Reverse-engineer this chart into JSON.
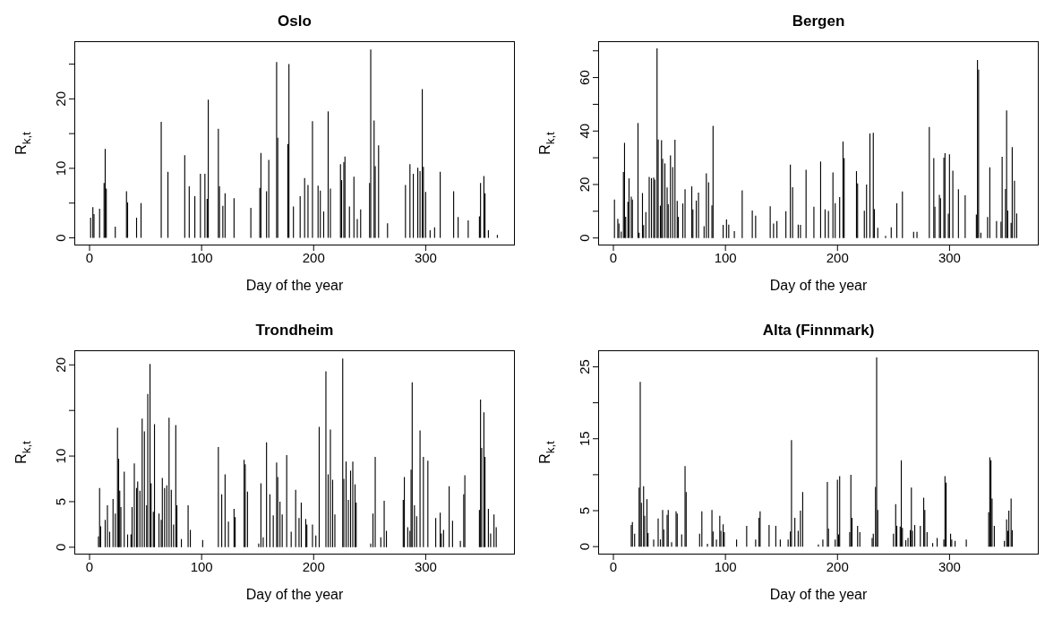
{
  "chart_data": [
    {
      "type": "bar",
      "title": "Oslo",
      "xlabel": "Day of the year",
      "ylabel": "R$_{k,t}$",
      "color": "#000000",
      "xlim": [
        -13.6,
        379.6
      ],
      "ylim": [
        -1.1,
        28.3
      ],
      "xticks": [
        0,
        100,
        200,
        300
      ],
      "yticks": [
        0,
        {
          "value": 5,
          "label": null
        },
        10,
        {
          "value": 15,
          "label": null
        },
        20,
        {
          "value": 25,
          "label": null
        }
      ],
      "x": [
        1,
        3,
        4,
        9,
        13,
        14,
        15,
        23,
        33,
        34,
        42,
        46,
        64,
        70,
        85,
        89,
        94,
        99,
        103,
        105,
        106,
        115,
        116,
        119,
        121,
        129,
        144,
        152,
        153,
        158,
        160,
        167,
        168,
        177,
        178,
        182,
        188,
        192,
        195,
        199,
        204,
        206,
        209,
        213,
        215,
        224,
        225,
        227,
        228,
        232,
        236,
        239,
        242,
        250,
        251,
        254,
        255,
        258,
        266,
        282,
        286,
        289,
        293,
        295,
        297,
        298,
        300,
        304,
        308,
        313,
        325,
        329,
        338,
        348,
        349,
        352,
        353,
        356,
        364
      ],
      "values": [
        2.9,
        4.4,
        3.4,
        4.2,
        7.9,
        12.8,
        7.1,
        1.6,
        6.7,
        5.1,
        2.9,
        5.0,
        16.7,
        9.5,
        11.9,
        7.4,
        6.0,
        9.2,
        9.2,
        5.6,
        19.9,
        15.7,
        7.4,
        4.6,
        6.4,
        5.7,
        4.3,
        7.2,
        12.2,
        6.7,
        11.2,
        25.3,
        14.4,
        13.5,
        25.0,
        4.5,
        6.0,
        8.6,
        7.6,
        16.8,
        7.5,
        6.8,
        3.8,
        18.2,
        7.1,
        10.6,
        8.3,
        10.9,
        11.7,
        4.5,
        8.8,
        2.7,
        4.1,
        7.9,
        27.1,
        16.9,
        10.3,
        13.3,
        2.1,
        7.6,
        10.6,
        9.2,
        10.1,
        9.6,
        21.4,
        10.2,
        6.6,
        1.1,
        1.5,
        9.5,
        6.7,
        3.0,
        2.5,
        3.1,
        7.9,
        8.9,
        6.4,
        1.1,
        0.4
      ]
    },
    {
      "type": "bar",
      "title": "Bergen",
      "xlabel": "Day of the year",
      "ylabel": "R$_{k,t}$",
      "color": "#000000",
      "xlim": [
        -13.6,
        379.6
      ],
      "ylim": [
        -2.8,
        73.6
      ],
      "xticks": [
        0,
        100,
        200,
        300
      ],
      "yticks": [
        0,
        {
          "value": 10,
          "label": null
        },
        20,
        {
          "value": 30,
          "label": null
        },
        40,
        {
          "value": 50,
          "label": null
        },
        60,
        {
          "value": 70,
          "label": null
        }
      ],
      "x": [
        1,
        4,
        5,
        7,
        9,
        10,
        11,
        13,
        14,
        16,
        17,
        22,
        23,
        26,
        27,
        29,
        32,
        34,
        36,
        37,
        39,
        40,
        42,
        43,
        44,
        46,
        48,
        49,
        51,
        53,
        55,
        57,
        58,
        62,
        64,
        70,
        71,
        74,
        76,
        81,
        83,
        85,
        88,
        89,
        98,
        101,
        103,
        108,
        115,
        124,
        127,
        140,
        143,
        146,
        154,
        158,
        160,
        165,
        167,
        172,
        179,
        185,
        189,
        192,
        196,
        198,
        202,
        205,
        206,
        217,
        218,
        224,
        226,
        229,
        232,
        233,
        236,
        243,
        248,
        253,
        258,
        268,
        271,
        282,
        286,
        287,
        291,
        292,
        295,
        296,
        299,
        300,
        303,
        308,
        314,
        324,
        325,
        326,
        328,
        334,
        336,
        342,
        346,
        347,
        350,
        351,
        352,
        355,
        356,
        358,
        360
      ],
      "values": [
        14.4,
        7.2,
        5.4,
        2.4,
        24.7,
        35.6,
        7.9,
        13.5,
        22.3,
        15.5,
        14.4,
        43.0,
        2.0,
        16.8,
        4.8,
        9.7,
        22.8,
        22.4,
        22.6,
        21.8,
        70.9,
        36.8,
        12.1,
        36.6,
        29.6,
        27.9,
        18.9,
        12.6,
        30.9,
        26.5,
        36.7,
        13.9,
        7.9,
        12.9,
        18.2,
        19.3,
        10.7,
        14.0,
        17.0,
        4.4,
        24.2,
        20.8,
        12.2,
        41.9,
        4.9,
        6.9,
        5.0,
        2.6,
        17.8,
        10.3,
        8.3,
        11.9,
        5.4,
        6.3,
        10.0,
        27.4,
        19.0,
        5.0,
        4.9,
        25.5,
        11.7,
        28.6,
        10.7,
        10.1,
        24.5,
        13.0,
        15.3,
        36.1,
        29.9,
        25.0,
        20.4,
        10.2,
        20.0,
        39.1,
        39.3,
        10.8,
        3.8,
        0.8,
        4.0,
        13.0,
        17.4,
        2.3,
        2.3,
        41.5,
        29.9,
        11.7,
        16.1,
        14.9,
        30.0,
        31.7,
        9.1,
        31.3,
        25.2,
        18.2,
        16.0,
        8.8,
        66.6,
        63.0,
        2.0,
        7.8,
        26.4,
        6.3,
        6.1,
        30.4,
        18.3,
        47.7,
        10.3,
        5.7,
        34.0,
        21.4,
        9.2
      ]
    },
    {
      "type": "bar",
      "title": "Trondheim",
      "xlabel": "Day of the year",
      "ylabel": "R$_{k,t}$",
      "color": "#000000",
      "xlim": [
        -13.6,
        379.6
      ],
      "ylim": [
        -0.8,
        21.6
      ],
      "xticks": [
        0,
        100,
        200,
        300
      ],
      "yticks": [
        0,
        5,
        10,
        {
          "value": 15,
          "label": null
        },
        20
      ],
      "x": [
        8,
        9,
        10,
        14,
        16,
        18,
        21,
        23,
        25,
        26,
        27,
        28,
        31,
        34,
        37,
        38,
        40,
        42,
        43,
        45,
        47,
        49,
        51,
        52,
        54,
        55,
        57,
        58,
        62,
        64,
        65,
        67,
        69,
        71,
        73,
        75,
        77,
        78,
        82,
        88,
        90,
        101,
        115,
        118,
        121,
        124,
        129,
        130,
        138,
        139,
        141,
        151,
        153,
        155,
        158,
        161,
        164,
        167,
        168,
        170,
        172,
        176,
        180,
        184,
        187,
        189,
        193,
        194,
        199,
        202,
        205,
        211,
        213,
        215,
        217,
        219,
        226,
        227,
        229,
        231,
        233,
        235,
        237,
        238,
        251,
        253,
        255,
        260,
        263,
        265,
        280,
        281,
        284,
        286,
        287,
        288,
        290,
        292,
        295,
        298,
        302,
        309,
        313,
        314,
        316,
        321,
        324,
        331,
        334,
        335,
        348,
        349,
        350,
        352,
        353,
        356,
        358,
        361,
        363
      ],
      "values": [
        1.2,
        6.5,
        2.3,
        3.0,
        4.6,
        1.7,
        5.3,
        3.7,
        13.1,
        9.7,
        6.2,
        4.4,
        8.3,
        1.4,
        1.4,
        4.4,
        9.2,
        6.5,
        7.2,
        6.2,
        14.1,
        12.7,
        4.6,
        16.8,
        20.1,
        7.0,
        3.9,
        13.5,
        3.7,
        3.0,
        7.6,
        6.5,
        6.8,
        14.2,
        6.3,
        2.5,
        13.4,
        4.6,
        0.9,
        4.6,
        1.9,
        0.8,
        11.0,
        5.8,
        8.0,
        2.8,
        4.2,
        3.3,
        9.6,
        9.1,
        6.1,
        0.4,
        7.0,
        1.1,
        11.5,
        5.8,
        3.5,
        9.3,
        7.7,
        5.0,
        3.6,
        10.1,
        1.7,
        6.3,
        3.2,
        4.9,
        3.1,
        2.5,
        2.5,
        1.3,
        13.2,
        19.3,
        8.0,
        12.9,
        7.4,
        3.6,
        20.7,
        7.5,
        9.4,
        5.2,
        8.4,
        9.4,
        6.9,
        4.9,
        0.4,
        3.7,
        9.9,
        1.1,
        5.1,
        1.8,
        5.2,
        7.7,
        2.2,
        1.8,
        8.5,
        18.1,
        4.6,
        3.4,
        12.8,
        9.9,
        9.5,
        3.2,
        3.8,
        1.5,
        1.9,
        6.7,
        2.9,
        0.7,
        5.8,
        7.9,
        4.1,
        16.2,
        10.9,
        14.8,
        9.9,
        4.2,
        1.5,
        3.6,
        2.2
      ]
    },
    {
      "type": "bar",
      "title": "Alta (Finnmark)",
      "xlabel": "Day of the year",
      "ylabel": "R$_{k,t}$",
      "color": "#000000",
      "xlim": [
        -13.6,
        379.6
      ],
      "ylim": [
        -1.1,
        27.3
      ],
      "xticks": [
        0,
        100,
        200,
        300
      ],
      "yticks": [
        0,
        5,
        {
          "value": 10,
          "label": null
        },
        15,
        {
          "value": 20,
          "label": null
        },
        25
      ],
      "x": [
        16,
        17,
        19,
        23,
        24,
        25,
        27,
        28,
        30,
        31,
        36,
        40,
        42,
        44,
        45,
        48,
        49,
        52,
        56,
        57,
        61,
        64,
        65,
        77,
        79,
        84,
        88,
        89,
        92,
        95,
        96,
        98,
        99,
        110,
        119,
        127,
        130,
        131,
        139,
        145,
        149,
        156,
        158,
        159,
        162,
        165,
        167,
        169,
        183,
        187,
        191,
        192,
        198,
        200,
        201,
        202,
        211,
        212,
        213,
        218,
        220,
        231,
        232,
        234,
        235,
        236,
        250,
        252,
        253,
        256,
        257,
        258,
        261,
        263,
        265,
        266,
        267,
        269,
        274,
        277,
        278,
        280,
        285,
        289,
        295,
        296,
        297,
        301,
        302,
        305,
        315,
        335,
        336,
        337,
        338,
        340,
        349,
        351,
        352,
        353,
        355,
        356
      ],
      "values": [
        3.0,
        3.4,
        1.8,
        8.2,
        22.9,
        6.1,
        8.4,
        4.3,
        6.6,
        1.9,
        1.0,
        3.9,
        1.0,
        5.1,
        2.4,
        4.4,
        5.1,
        0.6,
        4.9,
        4.6,
        1.7,
        11.2,
        7.6,
        1.8,
        4.9,
        0.4,
        5.1,
        2.1,
        1.0,
        4.3,
        2.2,
        3.1,
        2.0,
        1.0,
        2.9,
        1.0,
        4.0,
        4.9,
        3.0,
        2.9,
        1.0,
        1.0,
        2.1,
        14.8,
        4.0,
        2.2,
        5.0,
        7.6,
        0.3,
        1.0,
        9.0,
        2.5,
        1.0,
        9.3,
        1.7,
        9.8,
        2.0,
        10.0,
        4.0,
        2.9,
        2.0,
        1.2,
        1.8,
        8.3,
        26.3,
        5.1,
        1.8,
        5.9,
        2.9,
        2.8,
        12.0,
        2.6,
        0.9,
        1.2,
        2.3,
        8.2,
        2.2,
        3.0,
        2.9,
        6.8,
        5.1,
        2.0,
        0.5,
        1.2,
        1.0,
        9.8,
        8.9,
        1.8,
        1.0,
        0.8,
        1.0,
        4.8,
        12.4,
        12.0,
        6.7,
        2.9,
        0.8,
        3.8,
        2.2,
        5.0,
        6.7,
        2.3
      ]
    }
  ]
}
